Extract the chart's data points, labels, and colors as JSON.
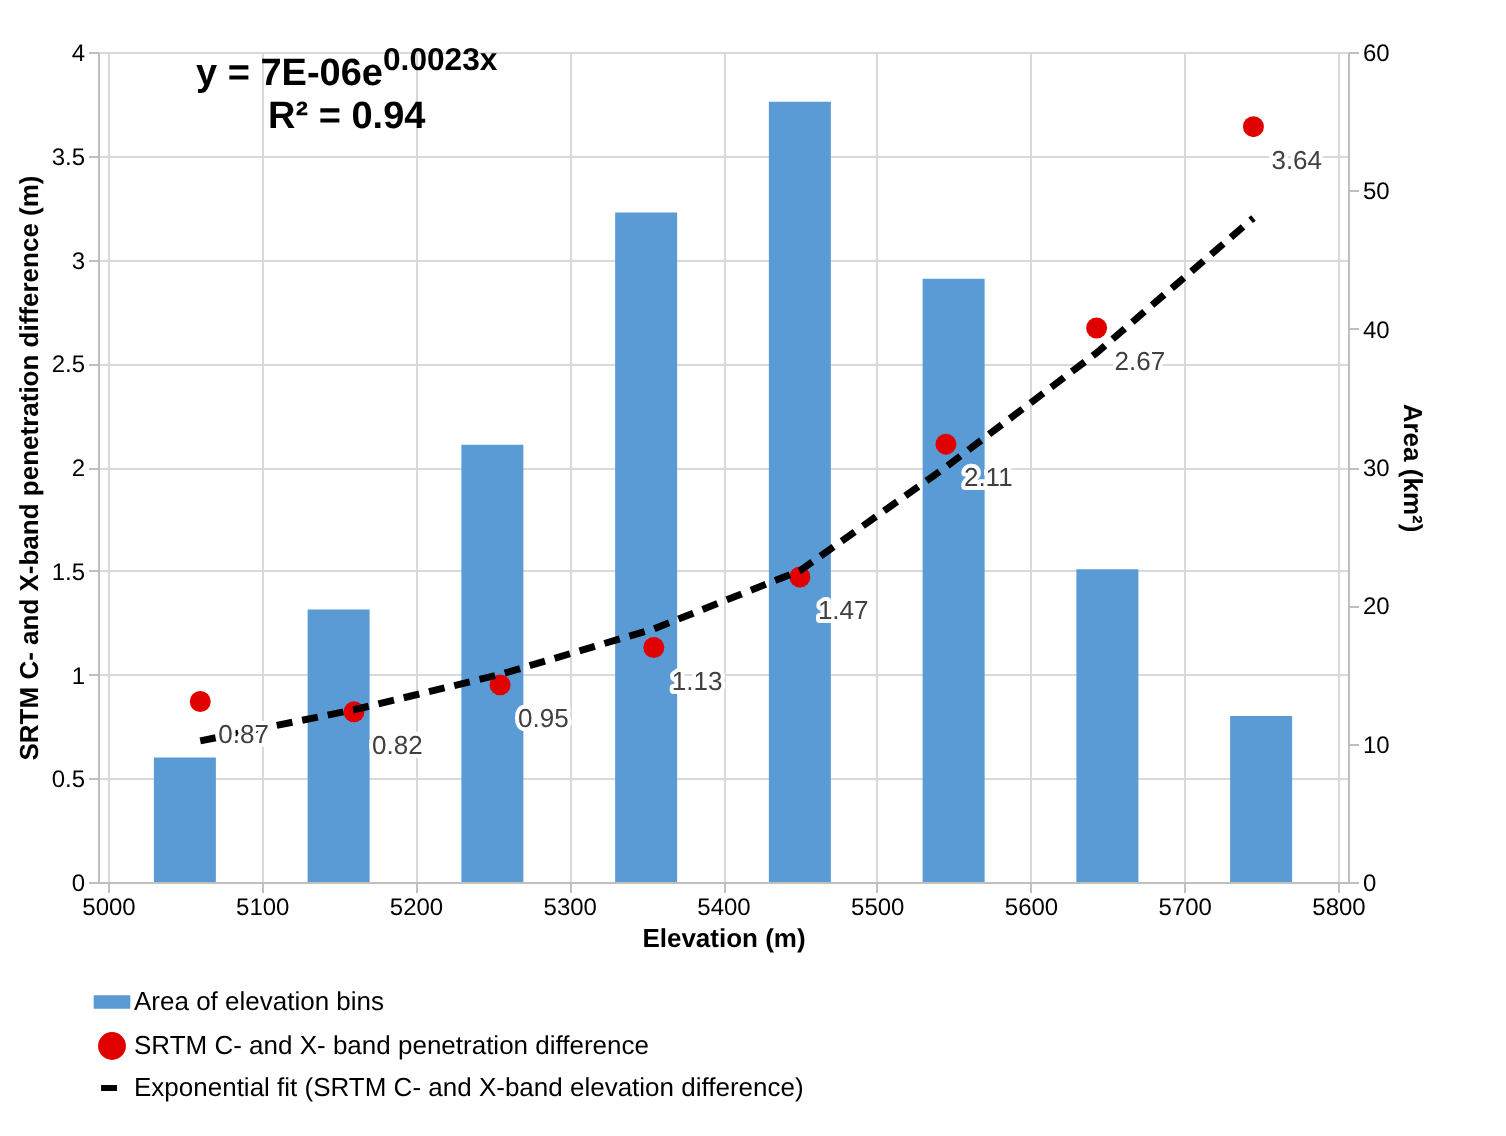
{
  "chart_data": {
    "type": "bar",
    "xlabel": "Elevation (m)",
    "ylabel": "SRTM C- and X-band penetration difference (m)",
    "y2label": "Area (km²)",
    "xlim": [
      5000,
      5800
    ],
    "xticks": [
      5000,
      5100,
      5200,
      5300,
      5400,
      5500,
      5600,
      5700,
      5800
    ],
    "ylim": [
      0,
      4
    ],
    "yticks": [
      0,
      0.5,
      1,
      1.5,
      2,
      2.5,
      3,
      3.5,
      4
    ],
    "y2lim": [
      0,
      60
    ],
    "y2ticks": [
      0,
      10,
      20,
      30,
      40,
      50,
      60
    ],
    "grid": true,
    "legend": "bottom",
    "annotations": [
      "y = 7E-06e$^{0.0023x}$",
      "R² = 0.94"
    ],
    "series": [
      {
        "name": "Area of elevation bins",
        "axis": "y2",
        "color": "#5b9bd5",
        "x": [
          5050,
          5150,
          5250,
          5350,
          5450,
          5550,
          5650,
          5750
        ],
        "values": [
          9,
          19.7,
          31.6,
          48.4,
          56.4,
          43.6,
          22.6,
          12
        ]
      },
      {
        "name": "SRTM C- and X- band penetration difference",
        "type": "scatter",
        "marker": "circle",
        "color": "#e00000",
        "x": [
          5060,
          5160,
          5255,
          5355,
          5450,
          5545,
          5643,
          5745
        ],
        "values": [
          0.87,
          0.82,
          0.95,
          1.13,
          1.47,
          2.11,
          2.67,
          3.64
        ],
        "value_labels": [
          "0.87",
          "0.82",
          "0.95",
          "1.13",
          "1.47",
          "2.11",
          "2.67",
          "3.64"
        ]
      },
      {
        "name": "Exponential fit (SRTM C- and X-band elevation difference)",
        "type": "line",
        "line_style": "dashed",
        "color": "#000000",
        "x": [
          5060,
          5160,
          5255,
          5355,
          5450,
          5545,
          5643,
          5745
        ],
        "values": [
          0.68,
          0.83,
          1.0,
          1.22,
          1.5,
          2.0,
          2.55,
          3.2
        ]
      }
    ]
  }
}
